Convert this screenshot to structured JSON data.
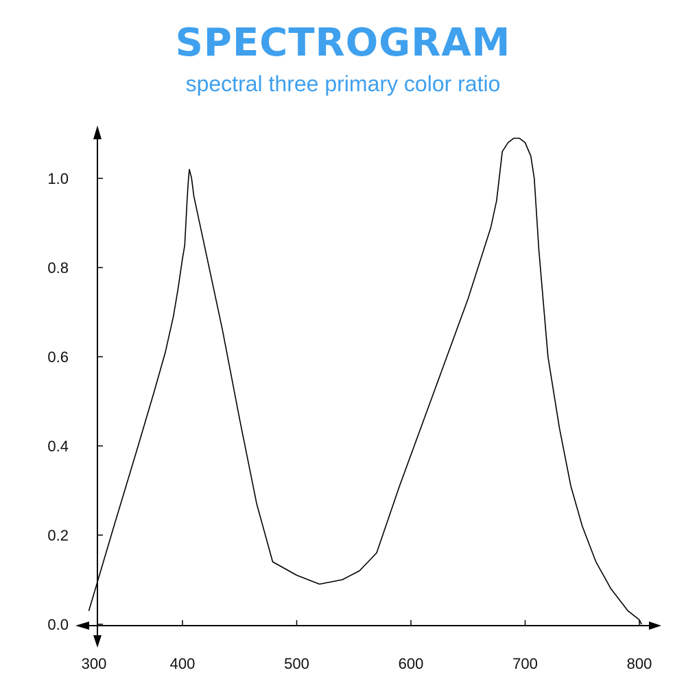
{
  "chart_data": {
    "type": "line",
    "title": "SPECTROGRAM",
    "subtitle": "spectral three primary color ratio",
    "xlabel": "",
    "ylabel": "",
    "xlim": [
      300,
      800
    ],
    "ylim": [
      0,
      1.1
    ],
    "x_ticks": [
      300,
      400,
      500,
      600,
      700,
      800
    ],
    "y_ticks": [
      0.0,
      0.2,
      0.4,
      0.6,
      0.8,
      1.0
    ],
    "grid": false,
    "legend": "none",
    "line_color": "#000000",
    "title_color": "#3fa0ee",
    "series": [
      {
        "x": [
          318,
          340,
          360,
          375,
          385,
          392,
          396,
          400,
          402,
          404,
          405,
          406,
          408,
          410,
          420,
          435,
          450,
          465,
          479,
          500,
          520,
          540,
          555,
          570,
          590,
          610,
          630,
          650,
          660,
          670,
          675,
          680,
          685,
          690,
          695,
          700,
          705,
          708,
          712,
          720,
          730,
          740,
          750,
          762,
          775,
          790,
          800,
          802
        ],
        "y": [
          0.03,
          0.22,
          0.39,
          0.52,
          0.61,
          0.69,
          0.75,
          0.82,
          0.85,
          0.95,
          0.99,
          1.02,
          1.0,
          0.96,
          0.84,
          0.66,
          0.46,
          0.27,
          0.14,
          0.11,
          0.09,
          0.1,
          0.12,
          0.16,
          0.31,
          0.45,
          0.59,
          0.73,
          0.81,
          0.89,
          0.95,
          1.06,
          1.08,
          1.09,
          1.09,
          1.08,
          1.05,
          1.0,
          0.84,
          0.6,
          0.44,
          0.31,
          0.22,
          0.14,
          0.08,
          0.03,
          0.01,
          0.0
        ]
      }
    ]
  }
}
